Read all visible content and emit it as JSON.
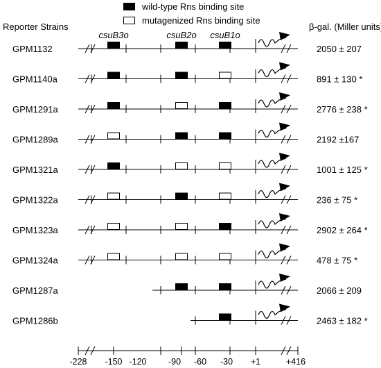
{
  "legend": {
    "wild_type": "wild-type Rns binding site",
    "mutagenized": "mutagenized Rns binding site"
  },
  "headers": {
    "strains": "Reporter Strains",
    "bgal": "β-gal. (Miller units)"
  },
  "site_labels": [
    "csuB3o",
    "csuB2o",
    "csuB1o"
  ],
  "rows": [
    {
      "strain": "GPM1132",
      "sites": [
        "wt",
        "wt",
        "wt"
      ],
      "truncated": null,
      "value": "2050 ± 207"
    },
    {
      "strain": "GPM1140a",
      "sites": [
        "wt",
        "wt",
        "mut"
      ],
      "truncated": null,
      "value": "891 ± 130 *"
    },
    {
      "strain": "GPM1291a",
      "sites": [
        "wt",
        "mut",
        "wt"
      ],
      "truncated": null,
      "value": "2776 ± 238 *"
    },
    {
      "strain": "GPM1289a",
      "sites": [
        "mut",
        "wt",
        "wt"
      ],
      "truncated": null,
      "value": "2192 ±167"
    },
    {
      "strain": "GPM1321a",
      "sites": [
        "wt",
        "mut",
        "mut"
      ],
      "truncated": null,
      "value": "1001 ± 125 *"
    },
    {
      "strain": "GPM1322a",
      "sites": [
        "mut",
        "wt",
        "mut"
      ],
      "truncated": null,
      "value": "236 ± 75 *"
    },
    {
      "strain": "GPM1323a",
      "sites": [
        "mut",
        "mut",
        "wt"
      ],
      "truncated": null,
      "value": "2902 ± 264 *"
    },
    {
      "strain": "GPM1324a",
      "sites": [
        "mut",
        "mut",
        "mut"
      ],
      "truncated": null,
      "value": "478 ± 75 *"
    },
    {
      "strain": "GPM1287a",
      "sites": [
        null,
        "wt",
        "wt"
      ],
      "truncated": "b2",
      "value": "2066 ± 209"
    },
    {
      "strain": "GPM1286b",
      "sites": [
        null,
        null,
        "wt"
      ],
      "truncated": "b1",
      "value": "2463 ± 182 *"
    }
  ],
  "axis_ticks": [
    "-228",
    "-150",
    "-120",
    "-90",
    "-60",
    "-30",
    "+1",
    "+416"
  ],
  "colors": {
    "ink": "#000000",
    "background": "#ffffff"
  }
}
